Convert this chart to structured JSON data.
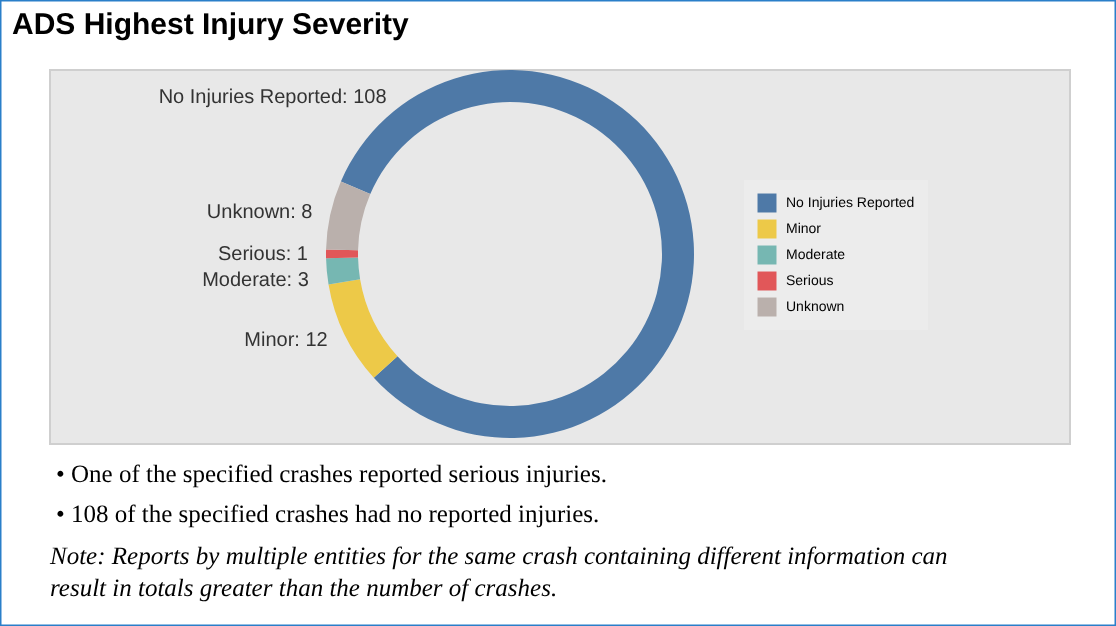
{
  "chart_data": {
    "type": "donut",
    "title": "ADS Highest Injury Severity",
    "categories": [
      "No Injuries Reported",
      "Minor",
      "Moderate",
      "Serious",
      "Unknown"
    ],
    "values": [
      108,
      12,
      3,
      1,
      8
    ],
    "colors": [
      "#4e79a7",
      "#edc948",
      "#76b7b2",
      "#e15759",
      "#bab0ac"
    ],
    "value_labels": [
      "No Injuries Reported: 108",
      "Minor: 12",
      "Moderate: 3",
      "Serious: 1",
      "Unknown: 8"
    ],
    "legend": "right",
    "annotations": [
      "• One of the specified crashes reported serious injuries.",
      "• 108 of the specified crashes had no reported injuries.",
      "Note: Reports by multiple entities for the same crash containing different information can result in totals greater than the number of crashes."
    ]
  }
}
